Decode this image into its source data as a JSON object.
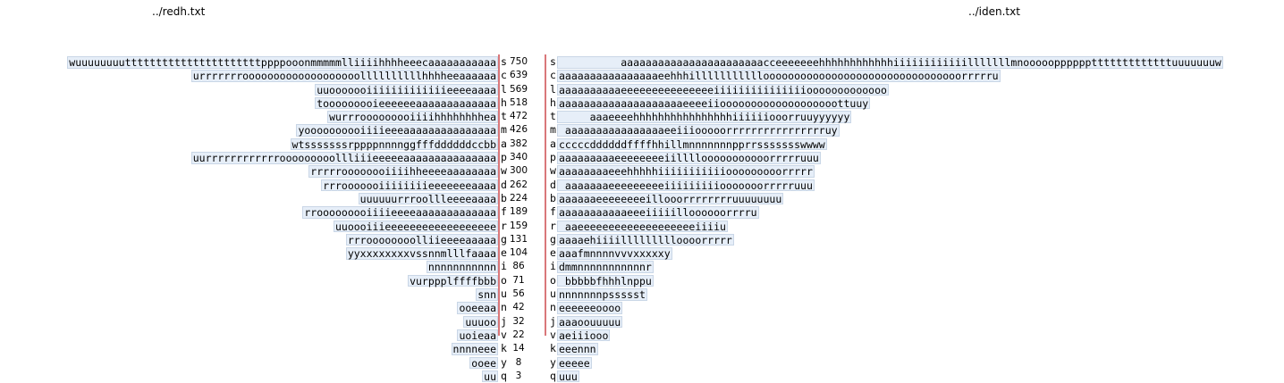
{
  "left_title": "../redh.txt",
  "right_title": "../iden.txt",
  "rows": [
    {
      "left": "wuuuuuuuuttttttttttttttttttttttppppooonmmmmmlliiiihhhheeecaaaaaaaaaaa",
      "letter": "s",
      "count": "750",
      "right": "          aaaaaaaaaaaaaaaaaaaaaaacceeeeeeehhhhhhhhhhhhiiiiiiiiiiiilllllllmnooooopppppptttttttttttttuuuuuuuw"
    },
    {
      "left": "urrrrrrrooooooooooooooooooollllllllllhhhheeaaaaaa",
      "letter": "c",
      "count": "639",
      "right": "aaaaaaaaaaaaaaaaeehhhillllllllllloooooooooooooooooooooooooooooooorrrrru"
    },
    {
      "left": "uuooooooiiiiiiiiiiiiieeeeaaaa",
      "letter": "l",
      "count": "569",
      "right": "aaaaaaaaaaeeeeeeeeeeeeeeeiiiiiiiiiiiiiiiooooooooooooo"
    },
    {
      "left": "tooooooooieeeeeeaaaaaaaaaaaaa",
      "letter": "h",
      "count": "518",
      "right": "aaaaaaaaaaaaaaaaaaaaeeeeiiooooooooooooooooooottuuy"
    },
    {
      "left": "wurrrooooooooiiiihhhhhhhhea",
      "letter": "t",
      "count": "472",
      "right": "     aaaeeeehhhhhhhhhhhhhhhhiiiiiiooorruuyyyyyy"
    },
    {
      "left": "yoooooooooiiiieeeaaaaaaaaaaaaaaa",
      "letter": "m",
      "count": "426",
      "right": " aaaaaaaaaaaaaaaaeeiiiooooorrrrrrrrrrrrrrrruy"
    },
    {
      "left": "wtsssssssrppppnnnnggfffddddddccbb",
      "letter": "a",
      "count": "382",
      "right": "cccccddddddffffhhillmnnnnnnnpprrssssssswwww"
    },
    {
      "left": "uurrrrrrrrrrrrooooooooollliiieeeeeaaaaaaaaaaaaaaa",
      "letter": "p",
      "count": "340",
      "right": "aaaaaaaaaeeeeeeeeiillllooooooooooorrrrruuu"
    },
    {
      "left": "rrrrroooooooiiiihheeeeaaaaaaaa",
      "letter": "w",
      "count": "300",
      "right": "aaaaaaaaeeehhhhhiiiiiiiiiiiooooooooorrrrr"
    },
    {
      "left": "rrrooooooiiiiiiiieeeeeeeaaaa",
      "letter": "d",
      "count": "262",
      "right": " aaaaaaaeeeeeeeeeiiiiiiiiiooooooorrrrruuu"
    },
    {
      "left": "uuuuuurrroollleeeeaaaa",
      "letter": "b",
      "count": "224",
      "right": "aaaaaaeeeeeeeeillooorrrrrrrruuuuuuuu"
    },
    {
      "left": "rrooooooooiiiieeeeaaaaaaaaaaaaa",
      "letter": "f",
      "count": "189",
      "right": "aaaaaaaaaaaeeeiiiiilloooooorrrru"
    },
    {
      "left": "uuoooiiieeeeeeeeeeeeeeeeee",
      "letter": "r",
      "count": "159",
      "right": " aaeeeeeeeeeeeeeeeeeeeiiiiu"
    },
    {
      "left": "rrroooooooolliieeeeaaaaa",
      "letter": "g",
      "count": "131",
      "right": "aaaaehiiiillllllllloooorrrrr"
    },
    {
      "left": "yyxxxxxxxxvssnnmlllfaaaa",
      "letter": "e",
      "count": "104",
      "right": "aaafmnnnnvvvxxxxxy"
    },
    {
      "left": "nnnnnnnnnnn",
      "letter": "i",
      "count": " 86",
      "right": "dmmnnnnnnnnnnnr"
    },
    {
      "left": "vurppplffffbbb",
      "letter": "o",
      "count": " 71",
      "right": " bbbbbfhhhlnppu"
    },
    {
      "left": "snn",
      "letter": "u",
      "count": " 56",
      "right": "nnnnnnnpssssst"
    },
    {
      "left": "ooeeaa",
      "letter": "n",
      "count": " 42",
      "right": "eeeeeeoooo"
    },
    {
      "left": "uuuoo",
      "letter": "j",
      "count": " 32",
      "right": "aaaoouuuuu"
    },
    {
      "left": "uoieaa",
      "letter": "v",
      "count": " 22",
      "right": "aeiiiooo"
    },
    {
      "left": "nnnneee",
      "letter": "k",
      "count": " 14",
      "right": "eeennn"
    },
    {
      "left": "ooee",
      "letter": "y",
      "count": "  8",
      "right": "eeeee"
    },
    {
      "left": "uu",
      "letter": "q",
      "count": "  3",
      "right": "uuu"
    }
  ]
}
